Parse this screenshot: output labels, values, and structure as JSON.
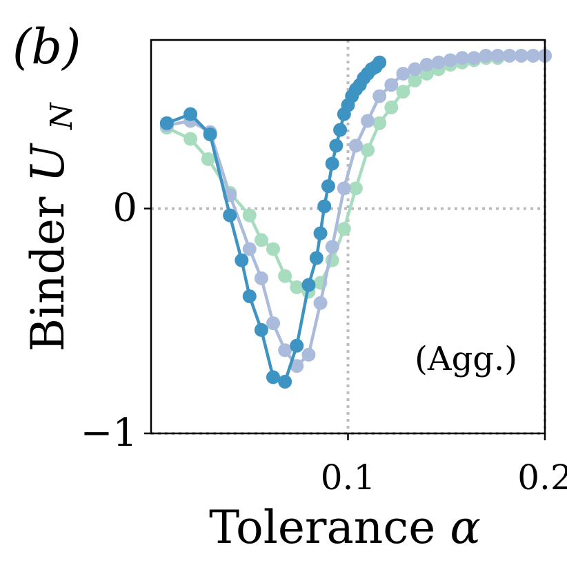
{
  "panel_label": "(b)",
  "chart_data": {
    "type": "line",
    "xlabel": "Tolerance",
    "xlabel_symbol": "α",
    "ylabel": "Binder",
    "ylabel_symbol": "U",
    "ylabel_subscript": "N",
    "annotation": "(Agg.)",
    "xlim": [
      0.0,
      0.2
    ],
    "ylim": [
      -1.0,
      0.75
    ],
    "x_ticks": [
      {
        "value": 0.1,
        "label": "0.1"
      },
      {
        "value": 0.2,
        "label": "0.2"
      }
    ],
    "y_ticks": [
      {
        "value": 0,
        "label": "0"
      },
      {
        "value": -1,
        "label": "−1"
      }
    ],
    "reference_lines": {
      "x": [
        0.1,
        0.2
      ],
      "y": [
        0,
        -1
      ]
    },
    "grid": false,
    "series": [
      {
        "color": "#a8dcbe",
        "x": [
          0.008,
          0.02,
          0.029,
          0.04,
          0.05,
          0.056,
          0.062,
          0.068,
          0.074,
          0.08,
          0.086,
          0.092,
          0.098,
          0.104,
          0.11,
          0.116,
          0.122,
          0.128,
          0.134,
          0.14,
          0.146,
          0.152,
          0.158,
          0.164,
          0.17,
          0.176,
          0.182,
          0.188,
          0.194,
          0.2
        ],
        "y": [
          0.36,
          0.31,
          0.22,
          0.07,
          -0.03,
          -0.14,
          -0.18,
          -0.3,
          -0.35,
          -0.37,
          -0.33,
          -0.23,
          -0.09,
          0.09,
          0.26,
          0.38,
          0.45,
          0.52,
          0.57,
          0.6,
          0.62,
          0.64,
          0.65,
          0.66,
          0.67,
          0.67,
          0.68,
          0.68,
          0.68,
          0.68
        ]
      },
      {
        "color": "#aabbdc",
        "x": [
          0.008,
          0.02,
          0.03,
          0.04,
          0.05,
          0.056,
          0.062,
          0.068,
          0.074,
          0.08,
          0.086,
          0.092,
          0.098,
          0.104,
          0.11,
          0.116,
          0.122,
          0.128,
          0.134,
          0.14,
          0.146,
          0.152,
          0.158,
          0.164,
          0.17,
          0.176,
          0.182,
          0.188,
          0.194,
          0.2
        ],
        "y": [
          0.37,
          0.39,
          0.34,
          0.06,
          -0.18,
          -0.31,
          -0.51,
          -0.63,
          -0.7,
          -0.65,
          -0.42,
          -0.17,
          0.09,
          0.28,
          0.39,
          0.5,
          0.55,
          0.6,
          0.62,
          0.64,
          0.65,
          0.66,
          0.67,
          0.67,
          0.68,
          0.68,
          0.68,
          0.68,
          0.68,
          0.68
        ]
      },
      {
        "color": "#3d93c2",
        "x": [
          0.008,
          0.02,
          0.03,
          0.04,
          0.046,
          0.05,
          0.056,
          0.062,
          0.068,
          0.074,
          0.08,
          0.084,
          0.086,
          0.088,
          0.09,
          0.092,
          0.094,
          0.096,
          0.098,
          0.1,
          0.102,
          0.104,
          0.106,
          0.108,
          0.11,
          0.112,
          0.114,
          0.116
        ],
        "y": [
          0.38,
          0.42,
          0.33,
          -0.03,
          -0.23,
          -0.39,
          -0.54,
          -0.75,
          -0.77,
          -0.61,
          -0.34,
          -0.22,
          -0.11,
          0.01,
          0.1,
          0.2,
          0.28,
          0.35,
          0.42,
          0.46,
          0.5,
          0.53,
          0.55,
          0.58,
          0.6,
          0.62,
          0.63,
          0.65
        ]
      }
    ]
  }
}
